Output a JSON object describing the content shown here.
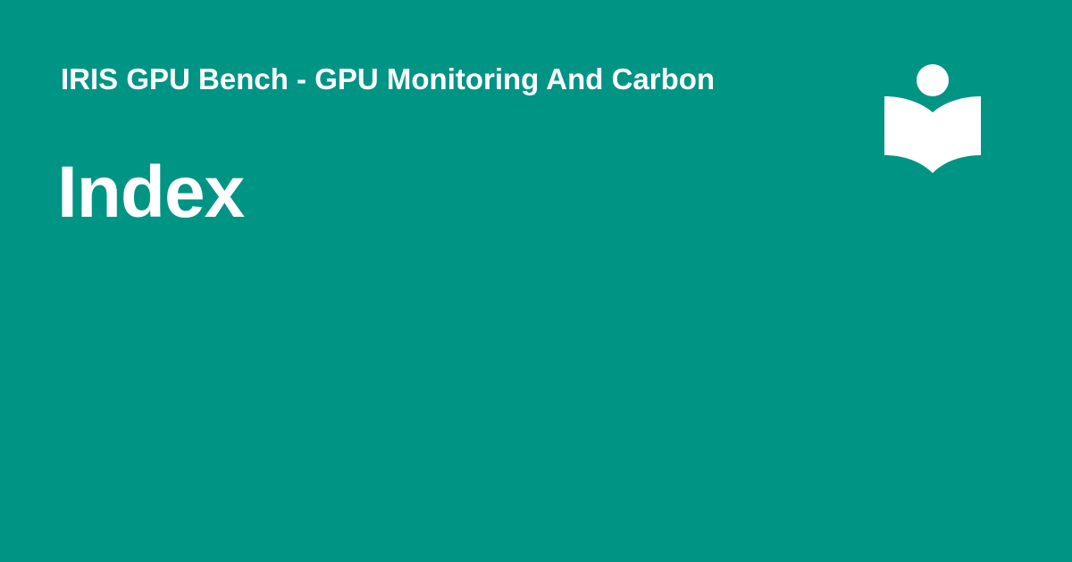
{
  "card": {
    "site_title": "IRIS GPU Bench - GPU Monitoring And Carbon",
    "page_title": "Index",
    "logo_icon": "reader-book-icon",
    "colors": {
      "background": "#009485",
      "foreground": "#ffffff"
    }
  }
}
